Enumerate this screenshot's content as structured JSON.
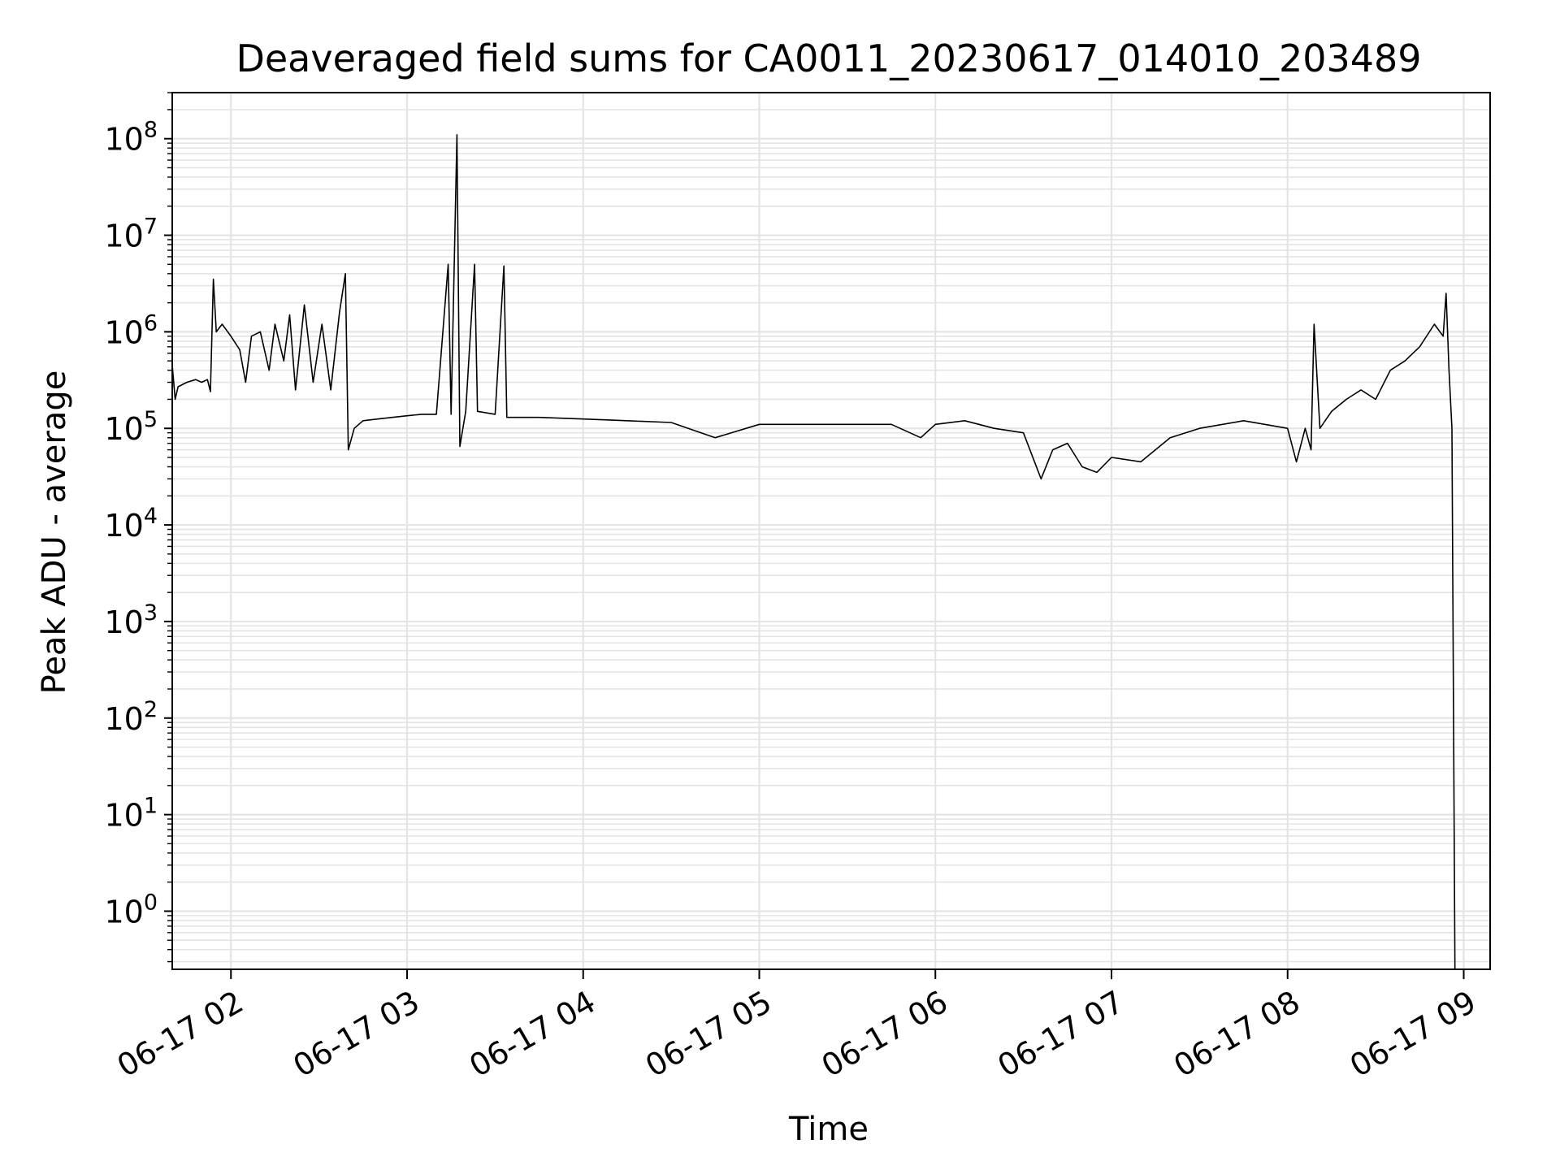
{
  "chart_data": {
    "type": "line",
    "title": "Deaveraged field sums for CA0011_20230617_014010_203489",
    "xlabel": "Time",
    "ylabel": "Peak ADU - average",
    "y_scale": "log",
    "ylim": [
      0.25,
      300000000
    ],
    "xlim": [
      "06-17 01:40",
      "06-17 09:09"
    ],
    "grid": true,
    "x_ticks": [
      "06-17 02",
      "06-17 03",
      "06-17 04",
      "06-17 05",
      "06-17 06",
      "06-17 07",
      "06-17 08",
      "06-17 09"
    ],
    "y_ticks": [
      {
        "base": "10",
        "exp": "0",
        "value": 1
      },
      {
        "base": "10",
        "exp": "1",
        "value": 10
      },
      {
        "base": "10",
        "exp": "2",
        "value": 100
      },
      {
        "base": "10",
        "exp": "3",
        "value": 1000
      },
      {
        "base": "10",
        "exp": "4",
        "value": 10000
      },
      {
        "base": "10",
        "exp": "5",
        "value": 100000
      },
      {
        "base": "10",
        "exp": "6",
        "value": 1000000
      },
      {
        "base": "10",
        "exp": "7",
        "value": 10000000
      },
      {
        "base": "10",
        "exp": "8",
        "value": 100000000
      }
    ],
    "colors": {
      "line": "#000000",
      "grid": "#e4e4e4",
      "axes": "#000000"
    },
    "series": [
      {
        "values": [
          [
            "06-17 01:40",
            450000
          ],
          [
            "06-17 01:41",
            200000
          ],
          [
            "06-17 01:42",
            270000
          ],
          [
            "06-17 01:45",
            300000
          ],
          [
            "06-17 01:48",
            320000
          ],
          [
            "06-17 01:50",
            300000
          ],
          [
            "06-17 01:52",
            320000
          ],
          [
            "06-17 01:53",
            240000
          ],
          [
            "06-17 01:54",
            3500000
          ],
          [
            "06-17 01:55",
            1000000
          ],
          [
            "06-17 01:57",
            1200000
          ],
          [
            "06-17 02:00",
            900000
          ],
          [
            "06-17 02:03",
            650000
          ],
          [
            "06-17 02:05",
            300000
          ],
          [
            "06-17 02:07",
            900000
          ],
          [
            "06-17 02:10",
            1000000
          ],
          [
            "06-17 02:13",
            400000
          ],
          [
            "06-17 02:15",
            1200000
          ],
          [
            "06-17 02:18",
            500000
          ],
          [
            "06-17 02:20",
            1500000
          ],
          [
            "06-17 02:22",
            250000
          ],
          [
            "06-17 02:25",
            1900000
          ],
          [
            "06-17 02:28",
            300000
          ],
          [
            "06-17 02:31",
            1200000
          ],
          [
            "06-17 02:34",
            250000
          ],
          [
            "06-17 02:37",
            1600000
          ],
          [
            "06-17 02:39",
            4000000
          ],
          [
            "06-17 02:40",
            60000
          ],
          [
            "06-17 02:42",
            100000
          ],
          [
            "06-17 02:45",
            120000
          ],
          [
            "06-17 02:50",
            125000
          ],
          [
            "06-17 02:55",
            130000
          ],
          [
            "06-17 03:00",
            135000
          ],
          [
            "06-17 03:05",
            140000
          ],
          [
            "06-17 03:10",
            140000
          ],
          [
            "06-17 03:14",
            5000000
          ],
          [
            "06-17 03:15",
            140000
          ],
          [
            "06-17 03:17",
            110000000
          ],
          [
            "06-17 03:18",
            65000
          ],
          [
            "06-17 03:20",
            150000
          ],
          [
            "06-17 03:23",
            5000000
          ],
          [
            "06-17 03:24",
            150000
          ],
          [
            "06-17 03:30",
            140000
          ],
          [
            "06-17 03:33",
            4800000
          ],
          [
            "06-17 03:34",
            130000
          ],
          [
            "06-17 03:45",
            130000
          ],
          [
            "06-17 04:00",
            125000
          ],
          [
            "06-17 04:15",
            120000
          ],
          [
            "06-17 04:30",
            115000
          ],
          [
            "06-17 04:45",
            80000
          ],
          [
            "06-17 05:00",
            110000
          ],
          [
            "06-17 05:15",
            110000
          ],
          [
            "06-17 05:30",
            110000
          ],
          [
            "06-17 05:45",
            110000
          ],
          [
            "06-17 05:55",
            80000
          ],
          [
            "06-17 06:00",
            110000
          ],
          [
            "06-17 06:10",
            120000
          ],
          [
            "06-17 06:20",
            100000
          ],
          [
            "06-17 06:30",
            90000
          ],
          [
            "06-17 06:36",
            30000
          ],
          [
            "06-17 06:40",
            60000
          ],
          [
            "06-17 06:45",
            70000
          ],
          [
            "06-17 06:50",
            40000
          ],
          [
            "06-17 06:55",
            35000
          ],
          [
            "06-17 07:00",
            50000
          ],
          [
            "06-17 07:10",
            45000
          ],
          [
            "06-17 07:20",
            80000
          ],
          [
            "06-17 07:30",
            100000
          ],
          [
            "06-17 07:45",
            120000
          ],
          [
            "06-17 08:00",
            100000
          ],
          [
            "06-17 08:03",
            45000
          ],
          [
            "06-17 08:06",
            100000
          ],
          [
            "06-17 08:08",
            60000
          ],
          [
            "06-17 08:09",
            1200000
          ],
          [
            "06-17 08:11",
            100000
          ],
          [
            "06-17 08:15",
            150000
          ],
          [
            "06-17 08:20",
            200000
          ],
          [
            "06-17 08:25",
            250000
          ],
          [
            "06-17 08:30",
            200000
          ],
          [
            "06-17 08:35",
            400000
          ],
          [
            "06-17 08:40",
            500000
          ],
          [
            "06-17 08:45",
            700000
          ],
          [
            "06-17 08:50",
            1200000
          ],
          [
            "06-17 08:53",
            900000
          ],
          [
            "06-17 08:54",
            2500000
          ],
          [
            "06-17 08:55",
            400000
          ],
          [
            "06-17 08:56",
            100000
          ],
          [
            "06-17 08:57",
            0.25
          ]
        ]
      }
    ]
  }
}
